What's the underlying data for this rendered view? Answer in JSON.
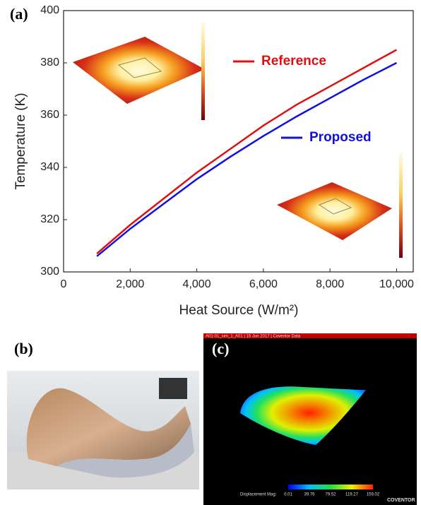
{
  "panel_labels": [
    "(a)",
    "(b)",
    "(c)"
  ],
  "chart_data": {
    "type": "line",
    "x_label": "Heat Source (W/m²)",
    "y_label": "Temperature (K)",
    "x": [
      1000,
      2000,
      3000,
      4000,
      5000,
      6000,
      7000,
      8000,
      9000,
      10000
    ],
    "series": [
      {
        "name": "Reference",
        "color": "#e01010",
        "values": [
          307,
          318,
          328,
          338,
          347,
          356,
          364,
          371,
          378,
          385
        ]
      },
      {
        "name": "Proposed",
        "color": "#1010e0",
        "values": [
          306,
          316.5,
          326,
          335.5,
          344,
          352,
          359.5,
          366.5,
          373.5,
          380
        ]
      }
    ],
    "xlim": [
      0,
      10500
    ],
    "ylim": [
      300,
      400
    ],
    "xticks": [
      0,
      {
        "value": 2000,
        "label": "2,000"
      },
      {
        "value": 4000,
        "label": "4,000"
      },
      {
        "value": 6000,
        "label": "6,000"
      },
      {
        "value": 8000,
        "label": "8,000"
      },
      {
        "value": 10000,
        "label": "10,000"
      }
    ],
    "yticks": [
      300,
      320,
      340,
      360,
      380,
      400
    ],
    "grid": false
  },
  "simulation": {
    "header": "A01-01_sim_1_A01 | 15 Jun 2017 | Coventor Data",
    "colorbar_title": "Displacement Mag:",
    "colorbar_ticks": [
      "0.01",
      "39.76",
      "79.52",
      "119.27",
      "159.02"
    ],
    "brand": "COVENTOR"
  }
}
